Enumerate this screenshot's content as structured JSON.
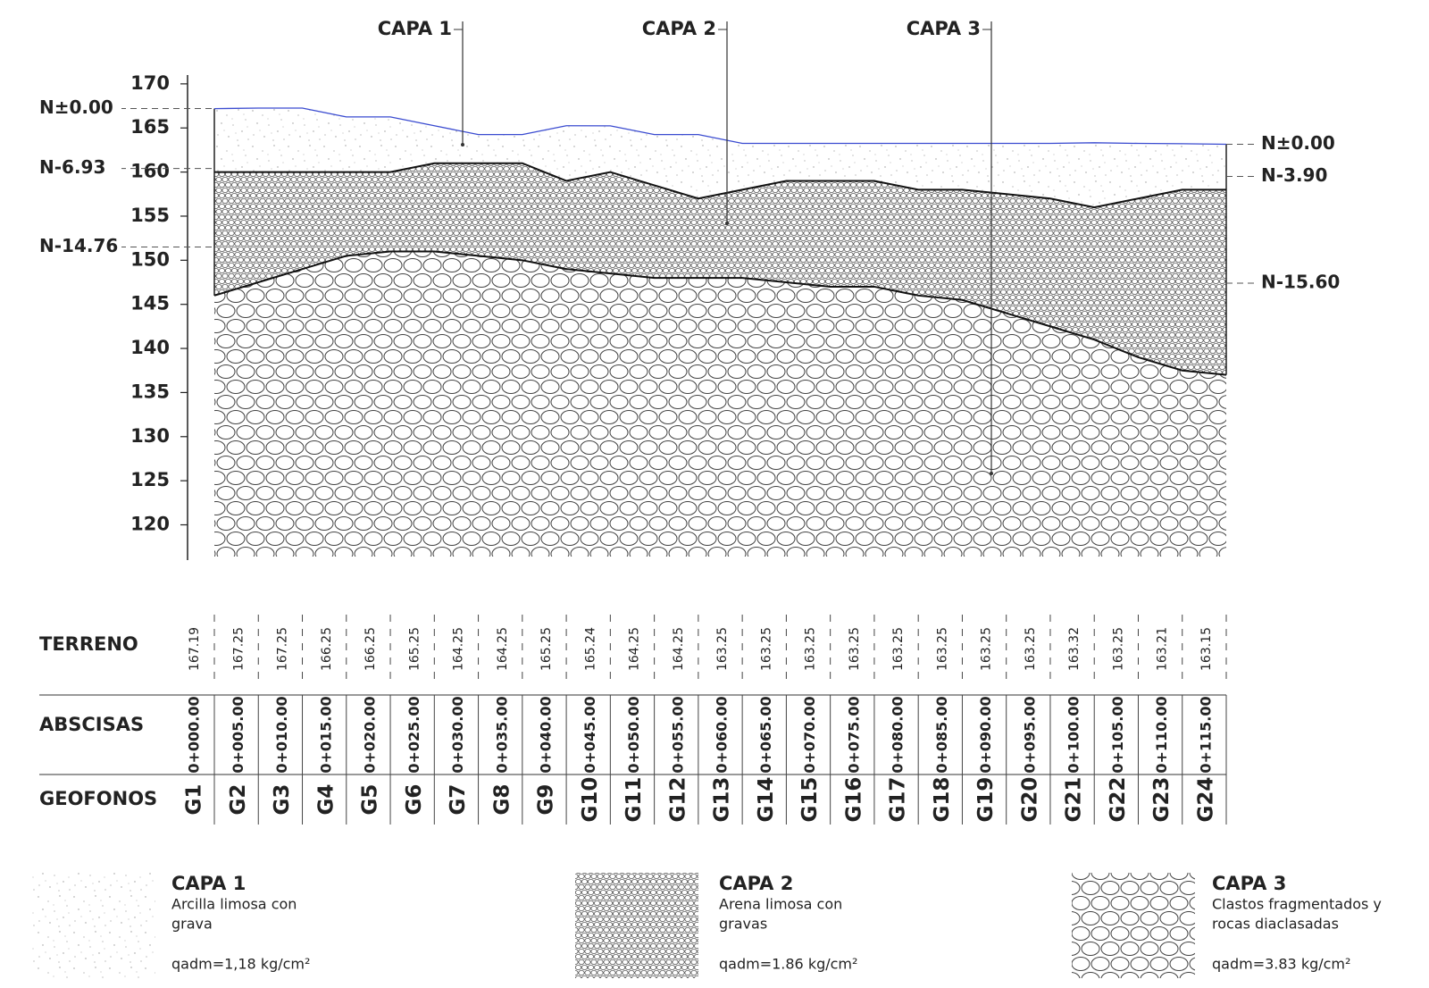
{
  "layer_labels": [
    "CAPA 1",
    "CAPA 2",
    "CAPA 3"
  ],
  "axis": {
    "ylim": [
      116,
      171
    ],
    "yticks": [
      120,
      125,
      130,
      135,
      140,
      145,
      150,
      155,
      160,
      165,
      170
    ]
  },
  "levels": [
    {
      "label": "N±0.00",
      "elevation": 167.2,
      "side": "left"
    },
    {
      "label": "N-6.93",
      "elevation": 160.4,
      "side": "left"
    },
    {
      "label": "N-14.76",
      "elevation": 151.5,
      "side": "left"
    },
    {
      "label": "N±0.00",
      "elevation": 163.15,
      "side": "right"
    },
    {
      "label": "N-3.90",
      "elevation": 159.5,
      "side": "right"
    },
    {
      "label": "N-15.60",
      "elevation": 147.4,
      "side": "right"
    }
  ],
  "boundaries": {
    "capa2_top": [
      160,
      160,
      160,
      160,
      160,
      161,
      161,
      161,
      159,
      160,
      158.5,
      157,
      158,
      159,
      159,
      159,
      158,
      158,
      157.5,
      157,
      156,
      157,
      158,
      158
    ],
    "capa3_top": [
      146,
      147.5,
      149,
      150.5,
      151,
      151,
      150.5,
      150,
      149,
      148.5,
      148,
      148,
      148,
      147.5,
      147,
      147,
      146,
      145.5,
      144,
      142.5,
      141,
      139,
      137.5,
      137
    ]
  },
  "table": {
    "row_labels": [
      "TERRENO",
      "ABSCISAS",
      "GEOFONOS"
    ],
    "terreno": [
      167.19,
      167.25,
      167.25,
      166.25,
      166.25,
      165.25,
      164.25,
      164.25,
      165.25,
      165.24,
      164.25,
      164.25,
      163.25,
      163.25,
      163.25,
      163.25,
      163.25,
      163.25,
      163.25,
      163.25,
      163.32,
      163.25,
      163.21,
      163.15
    ],
    "abscisas": [
      "0+000.00",
      "0+005.00",
      "0+010.00",
      "0+015.00",
      "0+020.00",
      "0+025.00",
      "0+030.00",
      "0+035.00",
      "0+040.00",
      "0+045.00",
      "0+050.00",
      "0+055.00",
      "0+060.00",
      "0+065.00",
      "0+070.00",
      "0+075.00",
      "0+080.00",
      "0+085.00",
      "0+090.00",
      "0+095.00",
      "0+100.00",
      "0+105.00",
      "0+110.00",
      "0+115.00"
    ],
    "geofonos": [
      "G1",
      "G2",
      "G3",
      "G4",
      "G5",
      "G6",
      "G7",
      "G8",
      "G9",
      "G10",
      "G11",
      "G12",
      "G13",
      "G14",
      "G15",
      "G16",
      "G17",
      "G18",
      "G19",
      "G20",
      "G21",
      "G22",
      "G23",
      "G24"
    ]
  },
  "legend": [
    {
      "title": "CAPA 1",
      "description": [
        "Arcilla limosa con",
        "grava"
      ],
      "capacity": "qadm=1,18 kg/cm²"
    },
    {
      "title": "CAPA 2",
      "description": [
        "Arena limosa con",
        "gravas"
      ],
      "capacity": "qadm=1.86 kg/cm²"
    },
    {
      "title": "CAPA 3",
      "description": [
        "Clastos fragmentados y",
        "rocas diaclasadas"
      ],
      "capacity": "qadm=3.83 kg/cm²"
    }
  ]
}
